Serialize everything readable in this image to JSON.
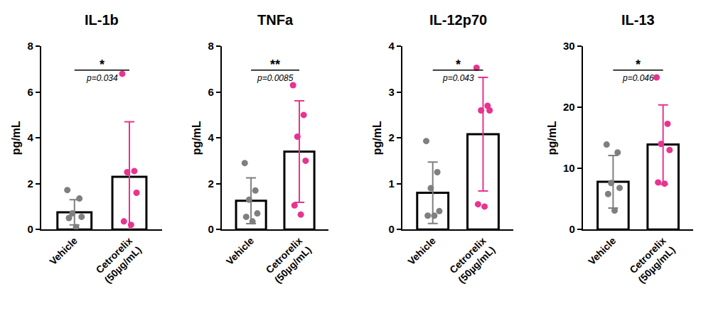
{
  "chart_data": [
    {
      "type": "bar",
      "title": "IL-1b",
      "y_label": "pg/mL",
      "categories": [
        "Vehicle",
        "Cetrorelix\n(50µg/mL)"
      ],
      "values": [
        0.75,
        2.3
      ],
      "errors": [
        0.55,
        2.4
      ],
      "points": [
        [
          1.72,
          1.35,
          0.7,
          0.55,
          0.5,
          0.1
        ],
        [
          6.8,
          2.55,
          2.5,
          1.6,
          0.35,
          0.2
        ]
      ],
      "colors": [
        "#7f7f7f",
        "#e8338f"
      ],
      "ylim": [
        0,
        8
      ],
      "yticks": [
        0,
        2,
        4,
        6,
        8
      ],
      "grid": false,
      "significance": {
        "label": "*",
        "p_text": "p=0.034"
      }
    },
    {
      "type": "bar",
      "title": "TNFa",
      "y_label": "pg/mL",
      "categories": [
        "Vehicle",
        "Cetrorelix\n(50µg/mL)"
      ],
      "values": [
        1.25,
        3.4
      ],
      "errors": [
        1.0,
        2.22
      ],
      "points": [
        [
          2.9,
          1.7,
          1.3,
          0.7,
          0.55,
          0.35
        ],
        [
          6.3,
          5.0,
          4.05,
          3.0,
          1.05,
          0.65
        ]
      ],
      "colors": [
        "#7f7f7f",
        "#e8338f"
      ],
      "ylim": [
        0,
        8
      ],
      "yticks": [
        0,
        2,
        4,
        6,
        8
      ],
      "grid": false,
      "significance": {
        "label": "**",
        "p_text": "p=0.0085"
      }
    },
    {
      "type": "bar",
      "title": "IL-12p70",
      "y_label": "pg/mL",
      "categories": [
        "Vehicle",
        "Cetrorelix\n(50µg/mL)"
      ],
      "values": [
        0.8,
        2.08
      ],
      "errors": [
        0.67,
        1.24
      ],
      "points": [
        [
          1.93,
          1.25,
          0.9,
          0.4,
          0.3,
          0.3
        ],
        [
          3.53,
          2.7,
          2.6,
          2.6,
          0.55,
          0.5
        ]
      ],
      "colors": [
        "#7f7f7f",
        "#e8338f"
      ],
      "ylim": [
        0,
        4
      ],
      "yticks": [
        0,
        1,
        2,
        3,
        4
      ],
      "grid": false,
      "significance": {
        "label": "*",
        "p_text": "p=0.043"
      }
    },
    {
      "type": "bar",
      "title": "IL-13",
      "y_label": "pg/mL",
      "categories": [
        "Vehicle",
        "Cetrorelix\n(50µg/mL)"
      ],
      "values": [
        7.8,
        13.9
      ],
      "errors": [
        4.3,
        6.5
      ],
      "points": [
        [
          13.9,
          12.6,
          7.6,
          6.8,
          5.8,
          3.1
        ],
        [
          24.9,
          17.3,
          14.0,
          13.0,
          7.7,
          7.5
        ]
      ],
      "colors": [
        "#7f7f7f",
        "#e8338f"
      ],
      "ylim": [
        0,
        30
      ],
      "yticks": [
        0,
        10,
        20,
        30
      ],
      "grid": false,
      "significance": {
        "label": "*",
        "p_text": "p=0.046"
      }
    }
  ]
}
